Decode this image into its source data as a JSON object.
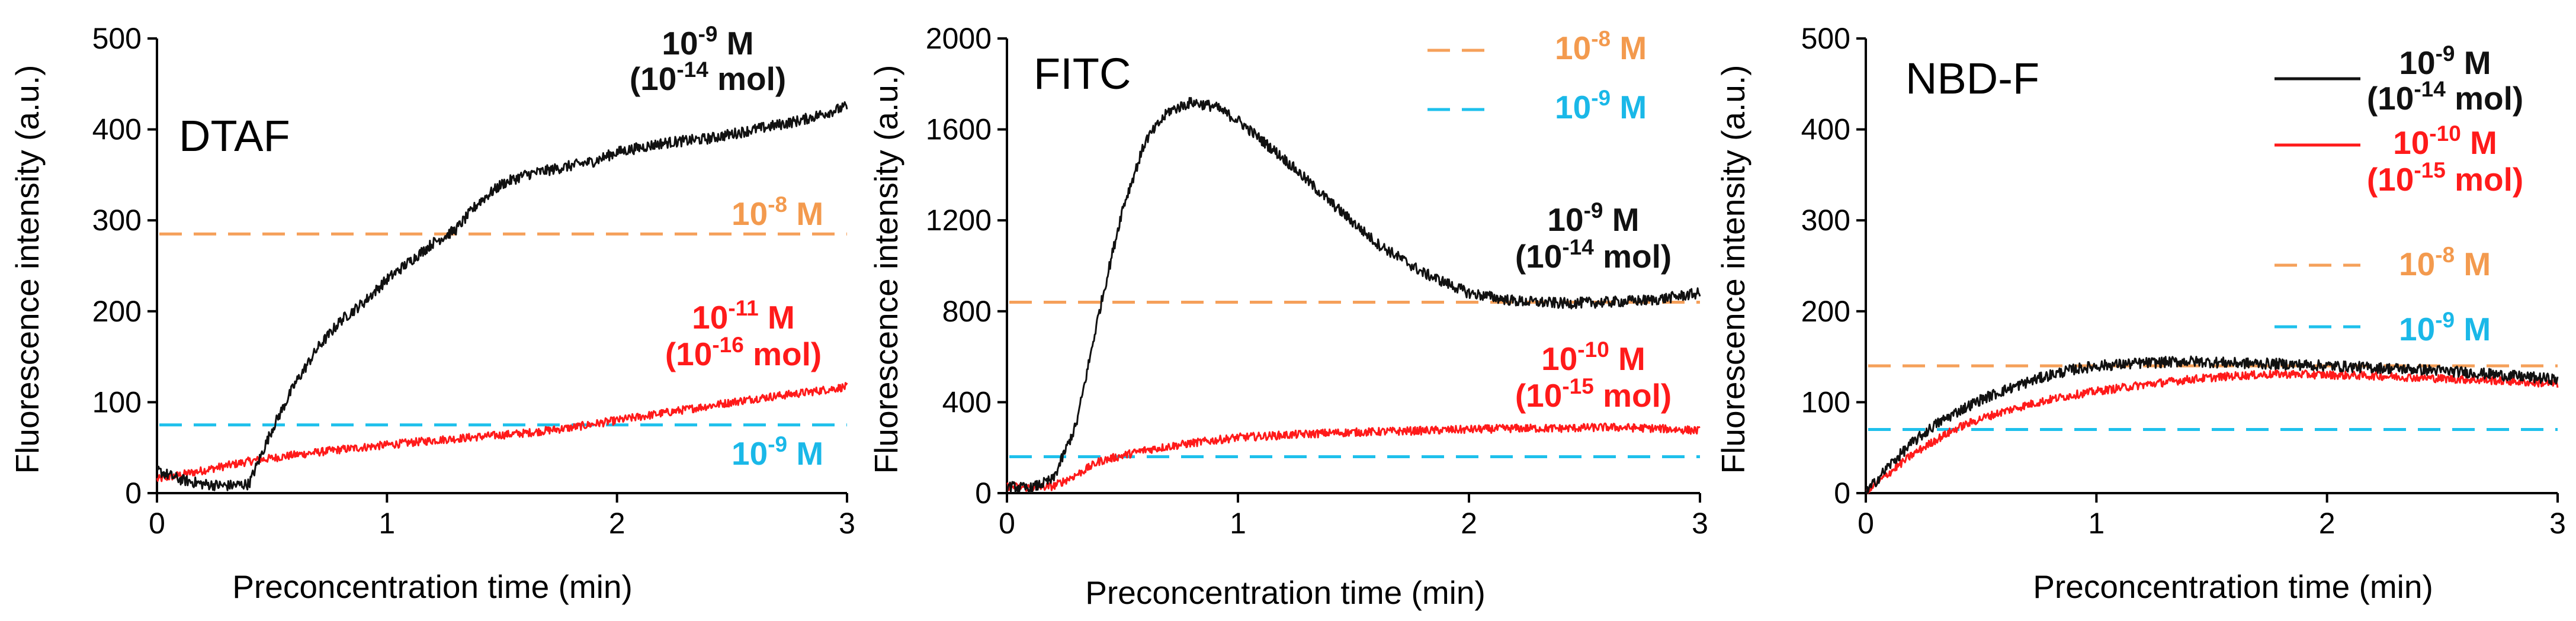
{
  "figure": {
    "xlabel": "Preconcentration time (min)",
    "ylabel": "Fluorescence intensity (a.u.)"
  },
  "colors": {
    "black": "#111111",
    "red": "#ff1a1a",
    "orange": "#f5a05a",
    "cyan": "#1ec0ec",
    "orange_text": "#f39a4e",
    "cyan_text": "#1ab8e8"
  },
  "chart_data": [
    {
      "type": "line",
      "title": "DTAF",
      "xlabel": "Preconcentration time (min)",
      "ylabel": "Fluorescence intensity (a.u.)",
      "xlim": [
        0,
        3
      ],
      "ylim": [
        0,
        500
      ],
      "xticks": [
        "0",
        "1",
        "2",
        "3"
      ],
      "yticks": [
        "0",
        "100",
        "200",
        "300",
        "400",
        "500"
      ],
      "series": [
        {
          "name": "10-9 M (10-14 mol)",
          "color": "#111111",
          "x": [
            0,
            0.1,
            0.2,
            0.3,
            0.4,
            0.5,
            0.6,
            0.7,
            0.8,
            0.9,
            1.0,
            1.1,
            1.2,
            1.3,
            1.4,
            1.5,
            1.6,
            1.7,
            1.8,
            1.9,
            2.0,
            2.2,
            2.4,
            2.6,
            2.8,
            3.0
          ],
          "y": [
            25,
            15,
            10,
            8,
            10,
            70,
            120,
            160,
            190,
            210,
            235,
            255,
            275,
            290,
            320,
            340,
            350,
            355,
            360,
            365,
            375,
            385,
            390,
            400,
            410,
            425
          ]
        },
        {
          "name": "10-11 M (10-16 mol)",
          "color": "#ff1a1a",
          "x": [
            0,
            0.2,
            0.4,
            0.6,
            0.8,
            1.0,
            1.2,
            1.4,
            1.6,
            1.8,
            2.0,
            2.2,
            2.4,
            2.6,
            2.8,
            3.0
          ],
          "y": [
            15,
            25,
            35,
            42,
            48,
            53,
            58,
            62,
            66,
            72,
            80,
            88,
            96,
            104,
            110,
            117
          ]
        }
      ],
      "reference_lines": [
        {
          "label_base": "10",
          "label_exp": "-8",
          "label_unit": " M",
          "value": 285,
          "color": "#f5a05a"
        },
        {
          "label_base": "10",
          "label_exp": "-9",
          "label_unit": " M",
          "value": 75,
          "color": "#1ec0ec"
        }
      ]
    },
    {
      "type": "line",
      "title": "FITC",
      "xlabel": "Preconcentration time (min)",
      "ylabel": "Fluorescence intensity (a.u.)",
      "xlim": [
        0,
        3
      ],
      "ylim": [
        0,
        2000
      ],
      "xticks": [
        "0",
        "1",
        "2",
        "3"
      ],
      "yticks": [
        "0",
        "400",
        "800",
        "1200",
        "1600",
        "2000"
      ],
      "series": [
        {
          "name": "10-9 M (10-14 mol)",
          "color": "#111111",
          "x": [
            0,
            0.1,
            0.2,
            0.3,
            0.4,
            0.5,
            0.6,
            0.7,
            0.8,
            0.9,
            1.0,
            1.2,
            1.4,
            1.6,
            1.8,
            2.0,
            2.2,
            2.4,
            2.6,
            2.8,
            3.0
          ],
          "y": [
            30,
            20,
            60,
            300,
            800,
            1250,
            1550,
            1680,
            1720,
            1700,
            1640,
            1470,
            1280,
            1100,
            970,
            880,
            845,
            835,
            840,
            850,
            880
          ]
        },
        {
          "name": "10-10 M (10-15 mol)",
          "color": "#ff1a1a",
          "x": [
            0,
            0.1,
            0.2,
            0.3,
            0.4,
            0.6,
            0.8,
            1.0,
            1.2,
            1.4,
            1.6,
            1.8,
            2.0,
            2.2,
            2.4,
            2.6,
            2.8,
            3.0
          ],
          "y": [
            30,
            25,
            30,
            80,
            140,
            190,
            220,
            245,
            255,
            265,
            270,
            275,
            280,
            285,
            285,
            290,
            285,
            275
          ]
        }
      ],
      "reference_lines": [
        {
          "label_base": "10",
          "label_exp": "-8",
          "label_unit": " M",
          "value": 840,
          "color": "#f5a05a"
        },
        {
          "label_base": "10",
          "label_exp": "-9",
          "label_unit": " M",
          "value": 160,
          "color": "#1ec0ec"
        }
      ]
    },
    {
      "type": "line",
      "title": "NBD-F",
      "xlabel": "Preconcentration time (min)",
      "ylabel": "Fluorescence intensity (a.u.)",
      "xlim": [
        0,
        3
      ],
      "ylim": [
        0,
        500
      ],
      "xticks": [
        "0",
        "1",
        "2",
        "3"
      ],
      "yticks": [
        "0",
        "100",
        "200",
        "300",
        "400",
        "500"
      ],
      "series": [
        {
          "name": "10-9 M (10-14 mol)",
          "color": "#111111",
          "x": [
            0,
            0.1,
            0.2,
            0.3,
            0.4,
            0.5,
            0.6,
            0.7,
            0.8,
            0.9,
            1.0,
            1.2,
            1.4,
            1.6,
            1.8,
            2.0,
            2.2,
            2.4,
            2.6,
            2.8,
            3.0
          ],
          "y": [
            0,
            30,
            55,
            75,
            90,
            103,
            113,
            122,
            130,
            136,
            140,
            143,
            145,
            143,
            142,
            140,
            138,
            136,
            133,
            129,
            125
          ]
        },
        {
          "name": "10-10 M (10-15 mol)",
          "color": "#ff1a1a",
          "x": [
            0,
            0.1,
            0.2,
            0.3,
            0.4,
            0.5,
            0.6,
            0.7,
            0.8,
            0.9,
            1.0,
            1.2,
            1.4,
            1.6,
            1.8,
            2.0,
            2.2,
            2.4,
            2.6,
            2.8,
            3.0
          ],
          "y": [
            0,
            22,
            42,
            58,
            72,
            82,
            90,
            97,
            103,
            108,
            112,
            119,
            125,
            129,
            131,
            130,
            129,
            127,
            125,
            123,
            120
          ]
        }
      ],
      "reference_lines": [
        {
          "label_base": "10",
          "label_exp": "-8",
          "label_unit": " M",
          "value": 140,
          "color": "#f5a05a"
        },
        {
          "label_base": "10",
          "label_exp": "-9",
          "label_unit": " M",
          "value": 70,
          "color": "#1ec0ec"
        }
      ]
    }
  ],
  "annotations": {
    "dtaf_black": {
      "l1_base": "10",
      "l1_exp": "-9",
      "l1_unit": " M",
      "l2_open": "(10",
      "l2_exp": "-14",
      "l2_unit": " mol)"
    },
    "dtaf_red": {
      "l1_base": "10",
      "l1_exp": "-11",
      "l1_unit": " M",
      "l2_open": "(10",
      "l2_exp": "-16",
      "l2_unit": " mol)"
    },
    "fitc_black": {
      "l1_base": "10",
      "l1_exp": "-9",
      "l1_unit": " M",
      "l2_open": "(10",
      "l2_exp": "-14",
      "l2_unit": " mol)"
    },
    "fitc_red": {
      "l1_base": "10",
      "l1_exp": "-10",
      "l1_unit": " M",
      "l2_open": "(10",
      "l2_exp": "-15",
      "l2_unit": " mol)"
    },
    "nbdf_black": {
      "l1_base": "10",
      "l1_exp": "-9",
      "l1_unit": " M",
      "l2_open": "(10",
      "l2_exp": "-14",
      "l2_unit": " mol)"
    },
    "nbdf_red": {
      "l1_base": "10",
      "l1_exp": "-10",
      "l1_unit": " M",
      "l2_open": "(10",
      "l2_exp": "-15",
      "l2_unit": " mol)"
    }
  }
}
